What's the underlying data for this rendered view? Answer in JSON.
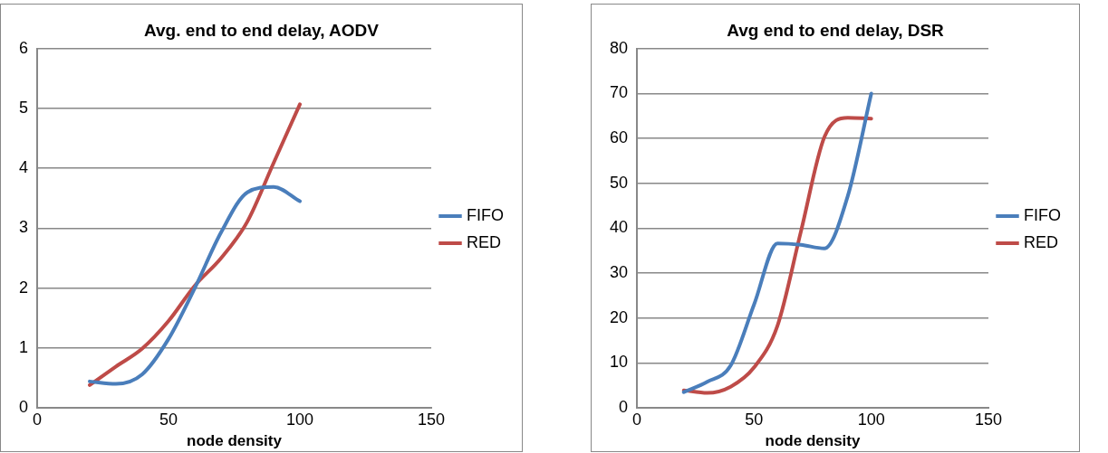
{
  "chart_data": [
    {
      "type": "line",
      "title": "Avg. end to end delay, AODV",
      "xlabel": "node density",
      "x": [
        20,
        30,
        40,
        50,
        60,
        70,
        80,
        90,
        100
      ],
      "xlim": [
        0,
        150
      ],
      "xticks": [
        0,
        50,
        100,
        150
      ],
      "ylim": [
        0,
        6
      ],
      "yticks": [
        0,
        1,
        2,
        3,
        4,
        5,
        6
      ],
      "grid": "y",
      "legend": "right",
      "marker": "none",
      "line_style": "solid",
      "series": [
        {
          "name": "FIFO",
          "color": "#4a7ebb",
          "values": [
            0.44,
            0.4,
            0.56,
            1.15,
            2.0,
            2.93,
            3.6,
            3.69,
            3.45
          ]
        },
        {
          "name": "RED",
          "color": "#be4b48",
          "values": [
            0.38,
            0.69,
            0.99,
            1.45,
            2.04,
            2.5,
            3.11,
            4.09,
            5.07
          ]
        }
      ]
    },
    {
      "type": "line",
      "title": "Avg end to end delay, DSR",
      "xlabel": "node density",
      "x": [
        20,
        30,
        40,
        50,
        60,
        70,
        80,
        90,
        100
      ],
      "xlim": [
        0,
        150
      ],
      "xticks": [
        0,
        50,
        100,
        150
      ],
      "ylim": [
        0,
        80
      ],
      "yticks": [
        0,
        10,
        20,
        30,
        40,
        50,
        60,
        70,
        80
      ],
      "grid": "y",
      "legend": "right",
      "marker": "none",
      "line_style": "solid",
      "series": [
        {
          "name": "FIFO",
          "color": "#4a7ebb",
          "values": [
            3.5,
            5.8,
            9.4,
            23,
            36.6,
            36.3,
            35.5,
            47.2,
            70
          ]
        },
        {
          "name": "RED",
          "color": "#be4b48",
          "values": [
            3.9,
            3.3,
            4.7,
            9,
            18.3,
            39.3,
            60.3,
            64.6,
            64.4
          ]
        }
      ]
    }
  ]
}
